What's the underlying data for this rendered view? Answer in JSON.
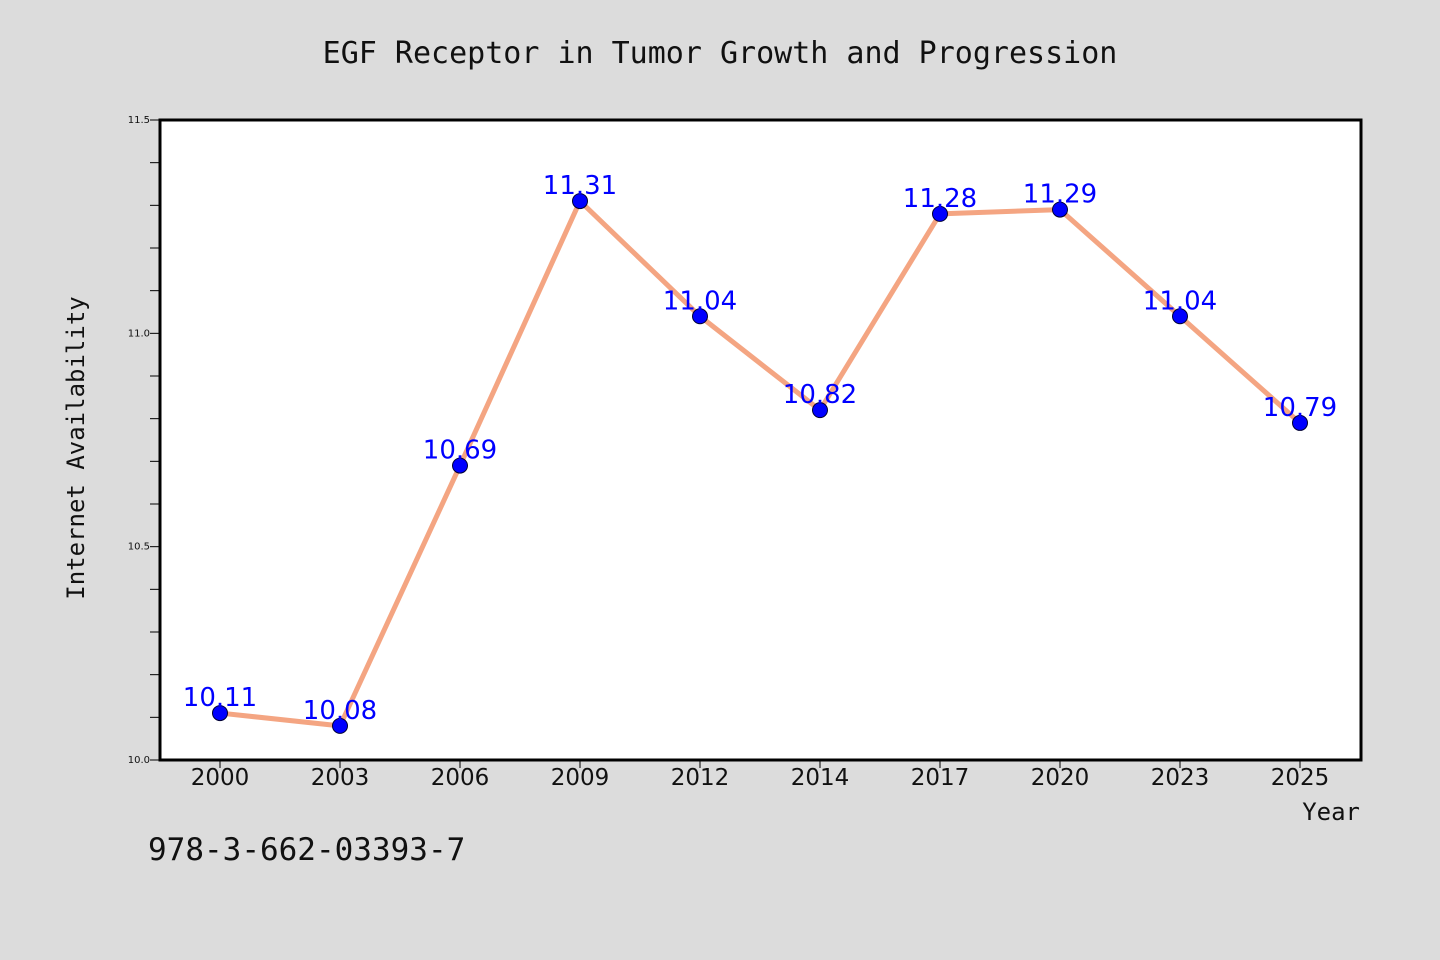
{
  "colors": {
    "background": "#dcdcdc",
    "plot_area": "#ffffff",
    "line": "#f4a582",
    "marker": "#0000ff",
    "data_label": "#0000ff"
  },
  "footer": {
    "code": "978-3-662-03393-7"
  },
  "chart_data": {
    "type": "line",
    "title": "EGF Receptor in Tumor Growth and Progression",
    "xlabel": "Year",
    "ylabel": "Internet Availability",
    "categories": [
      "2000",
      "2003",
      "2006",
      "2009",
      "2012",
      "2014",
      "2017",
      "2020",
      "2023",
      "2025"
    ],
    "series": [
      {
        "values": [
          10.11,
          10.08,
          10.69,
          11.31,
          11.04,
          10.82,
          11.28,
          11.29,
          11.04,
          10.79
        ],
        "labels": [
          "10.11",
          "10.08",
          "10.69",
          "11.31",
          "11.04",
          "10.82",
          "11.28",
          "11.29",
          "11.04",
          "10.79"
        ]
      }
    ],
    "ylim": [
      10.0,
      11.5
    ],
    "yticks": [
      "10.0",
      "10.5",
      "11.0",
      "11.5"
    ],
    "yminor_step": 0.1,
    "grid": false,
    "legend": "none",
    "data_labels": true,
    "markers": "circle"
  }
}
